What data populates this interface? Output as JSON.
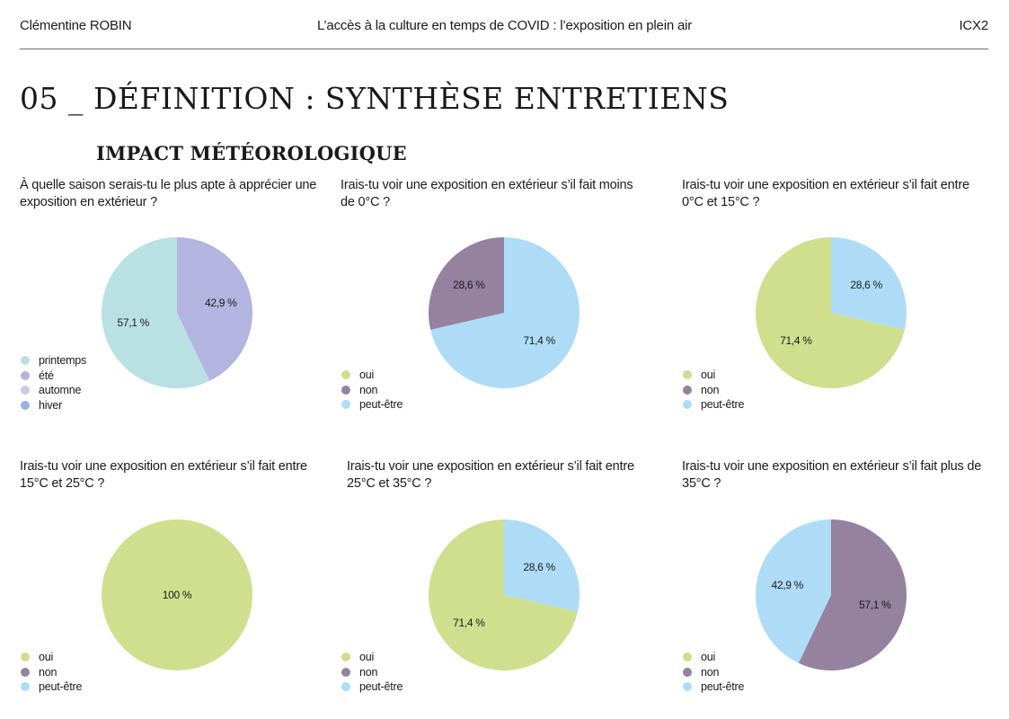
{
  "header": {
    "author": "Clémentine ROBIN",
    "subtitle": "L’accès à la culture en temps de COVID : l’exposition en plein air",
    "code": "ICX2"
  },
  "page_title": "05 _ DÉFINITION : SYNTHÈSE ENTRETIENS",
  "section_title": "IMPACT MÉTÉOROLOGIQUE",
  "colors": {
    "printemps": "#b9e0e3",
    "ete": "#b3b4df",
    "automne": "#cfc9e2",
    "hiver": "#99b0e0",
    "oui": "#cfdf8e",
    "non": "#95829f",
    "peut_etre": "#aedcf7"
  },
  "chart_data": [
    {
      "type": "pie",
      "title": "À quelle saison serais-tu le plus apte à apprécier une exposition en extérieur ?",
      "slices": [
        {
          "name": "été",
          "value": 42.9,
          "label": "42,9 %",
          "color": "#b3b4df"
        },
        {
          "name": "printemps",
          "value": 57.1,
          "label": "57,1 %",
          "color": "#b9e0e3"
        }
      ],
      "legend": [
        {
          "name": "printemps",
          "color": "#b9e0e3"
        },
        {
          "name": "été",
          "color": "#b3b4df"
        },
        {
          "name": "automne",
          "color": "#cfc9e2"
        },
        {
          "name": "hiver",
          "color": "#99b0e0"
        }
      ],
      "legend_position": "bottom-left"
    },
    {
      "type": "pie",
      "title": "Irais-tu voir une exposition en extérieur s’il fait moins de 0°C ?",
      "slices": [
        {
          "name": "peut-être",
          "value": 71.4,
          "label": "71,4 %",
          "color": "#aedcf7"
        },
        {
          "name": "non",
          "value": 28.6,
          "label": "28,6 %",
          "color": "#95829f"
        }
      ],
      "legend": [
        {
          "name": "oui",
          "color": "#cfdf8e"
        },
        {
          "name": "non",
          "color": "#95829f"
        },
        {
          "name": "peut-être",
          "color": "#aedcf7"
        }
      ],
      "legend_position": "bottom-left"
    },
    {
      "type": "pie",
      "title": "Irais-tu voir une exposition en extérieur s’il fait entre 0°C et 15°C ?",
      "slices": [
        {
          "name": "peut-être",
          "value": 28.6,
          "label": "28,6 %",
          "color": "#aedcf7"
        },
        {
          "name": "oui",
          "value": 71.4,
          "label": "71,4 %",
          "color": "#cfdf8e"
        }
      ],
      "legend": [
        {
          "name": "oui",
          "color": "#cfdf8e"
        },
        {
          "name": "non",
          "color": "#95829f"
        },
        {
          "name": "peut-être",
          "color": "#aedcf7"
        }
      ],
      "legend_position": "bottom-left"
    },
    {
      "type": "pie",
      "title": "Irais-tu voir une exposition en extérieur s’il fait entre 15°C et 25°C ?",
      "slices": [
        {
          "name": "oui",
          "value": 100,
          "label": "100 %",
          "color": "#cfdf8e"
        }
      ],
      "legend": [
        {
          "name": "oui",
          "color": "#cfdf8e"
        },
        {
          "name": "non",
          "color": "#95829f"
        },
        {
          "name": "peut-être",
          "color": "#aedcf7"
        }
      ],
      "legend_position": "bottom-left"
    },
    {
      "type": "pie",
      "title": "Irais-tu voir une exposition en extérieur s’il fait entre 25°C et 35°C ?",
      "slices": [
        {
          "name": "peut-être",
          "value": 28.6,
          "label": "28,6 %",
          "color": "#aedcf7"
        },
        {
          "name": "oui",
          "value": 71.4,
          "label": "71,4 %",
          "color": "#cfdf8e"
        }
      ],
      "legend": [
        {
          "name": "oui",
          "color": "#cfdf8e"
        },
        {
          "name": "non",
          "color": "#95829f"
        },
        {
          "name": "peut-être",
          "color": "#aedcf7"
        }
      ],
      "legend_position": "bottom-left"
    },
    {
      "type": "pie",
      "title": "Irais-tu voir une exposition en extérieur s’il fait plus de 35°C ?",
      "slices": [
        {
          "name": "non",
          "value": 57.1,
          "label": "57,1 %",
          "color": "#95829f"
        },
        {
          "name": "peut-être",
          "value": 42.9,
          "label": "42,9 %",
          "color": "#aedcf7"
        }
      ],
      "legend": [
        {
          "name": "oui",
          "color": "#cfdf8e"
        },
        {
          "name": "non",
          "color": "#95829f"
        },
        {
          "name": "peut-être",
          "color": "#aedcf7"
        }
      ],
      "legend_position": "bottom-left"
    }
  ]
}
